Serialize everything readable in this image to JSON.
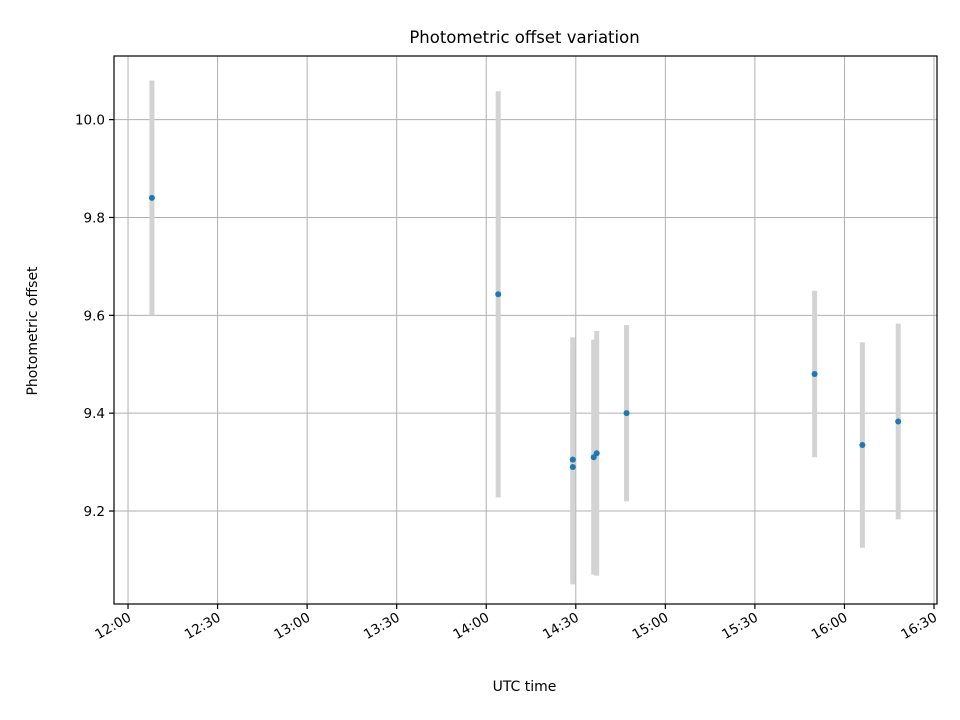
{
  "chart_data": {
    "type": "scatter",
    "title": "Photometric offset variation",
    "xlabel": "UTC time",
    "ylabel": "Photometric offset",
    "x_ticks": [
      "12:00",
      "12:30",
      "13:00",
      "13:30",
      "14:00",
      "14:30",
      "15:00",
      "15:30",
      "16:00",
      "16:30"
    ],
    "x_tick_minutes": [
      720,
      750,
      780,
      810,
      840,
      870,
      900,
      930,
      960,
      990
    ],
    "y_ticks": [
      "9.2",
      "9.4",
      "9.6",
      "9.8",
      "10.0"
    ],
    "y_tick_values": [
      9.2,
      9.4,
      9.6,
      9.8,
      10.0
    ],
    "xlim_minutes": [
      715.3,
      991.0
    ],
    "ylim": [
      9.01,
      10.13
    ],
    "grid": true,
    "marker_color": "#1f77b4",
    "errorbar_color": "#d3d3d3",
    "points": [
      {
        "time": "12:08",
        "y": 9.84,
        "err": 0.24
      },
      {
        "time": "14:04",
        "y": 9.643,
        "err": 0.415
      },
      {
        "time": "14:29",
        "y": 9.305,
        "err": 0.25
      },
      {
        "time": "14:29",
        "y": 9.29,
        "err": 0.24
      },
      {
        "time": "14:36",
        "y": 9.31,
        "err": 0.24
      },
      {
        "time": "14:37",
        "y": 9.318,
        "err": 0.25
      },
      {
        "time": "14:47",
        "y": 9.4,
        "err": 0.18
      },
      {
        "time": "15:50",
        "y": 9.48,
        "err": 0.17
      },
      {
        "time": "16:06",
        "y": 9.335,
        "err": 0.21
      },
      {
        "time": "16:18",
        "y": 9.383,
        "err": 0.2
      }
    ]
  }
}
